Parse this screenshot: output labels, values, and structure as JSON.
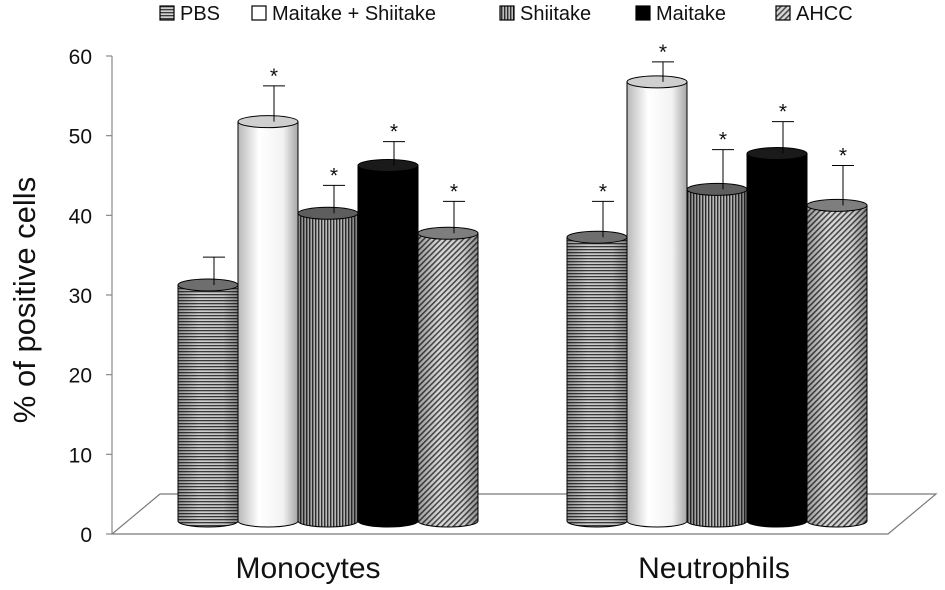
{
  "chart_data": {
    "type": "bar",
    "title": "",
    "xlabel": "",
    "ylabel": "% of positive cells",
    "ylim": [
      0,
      60
    ],
    "yticks": [
      0,
      10,
      20,
      30,
      40,
      50,
      60
    ],
    "grid": false,
    "legend_position": "top",
    "categories": [
      "Monocytes",
      "Neutrophils"
    ],
    "series": [
      {
        "name": "PBS",
        "values": [
          30,
          36
        ],
        "errors": [
          3.5,
          4.5
        ],
        "significant": [
          false,
          true
        ],
        "pattern": "horizontal",
        "fill": "#8c8c8c"
      },
      {
        "name": "Maitake + Shiitake",
        "values": [
          50.5,
          55.5
        ],
        "errors": [
          4.5,
          2.5
        ],
        "significant": [
          true,
          true
        ],
        "pattern": "none",
        "fill": "#ffffff"
      },
      {
        "name": "Shiitake",
        "values": [
          39,
          42
        ],
        "errors": [
          3.5,
          5
        ],
        "significant": [
          true,
          true
        ],
        "pattern": "vertical",
        "fill": "#7a7a7a"
      },
      {
        "name": "Maitake",
        "values": [
          45,
          46.5
        ],
        "errors": [
          3,
          4
        ],
        "significant": [
          true,
          true
        ],
        "pattern": "solid",
        "fill": "#000000"
      },
      {
        "name": "AHCC",
        "values": [
          36.5,
          40
        ],
        "errors": [
          4,
          5
        ],
        "significant": [
          true,
          true
        ],
        "pattern": "diagonal",
        "fill": "#9a9a9a"
      }
    ],
    "significance_marker": "*"
  }
}
